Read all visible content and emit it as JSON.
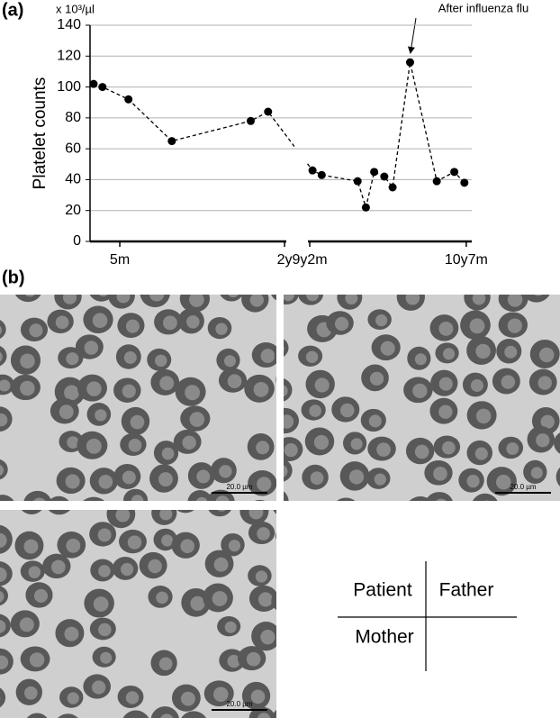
{
  "panel_labels": [
    "(a)",
    "(b)"
  ],
  "chart_data": {
    "type": "line",
    "y_label": "Platelet counts",
    "y_unit": "x 10³/µl",
    "x": [
      1.98,
      3.0,
      6.0,
      11.0,
      20.1,
      22.1,
      110.3,
      111.3,
      115.2,
      116.1,
      117.0,
      118.1,
      119.0,
      120.9,
      123.8,
      125.7,
      126.8
    ],
    "values": [
      102,
      100,
      92,
      65,
      78,
      84,
      46,
      43,
      39,
      22,
      45,
      42,
      35,
      116,
      39,
      45,
      38
    ],
    "color": "#000000",
    "xlim": [
      1.57,
      127.6
    ],
    "x_break": [
      24.2,
      109.8
    ],
    "xticks": [
      {
        "value": 5,
        "label": "5m"
      },
      {
        "value": 24,
        "label": "2y"
      },
      {
        "value": 110,
        "label": "9y2m"
      },
      {
        "value": 127,
        "label": "10y7m"
      }
    ],
    "ylim": [
      0,
      140
    ],
    "yticks": [
      0,
      20,
      40,
      60,
      80,
      100,
      120,
      140
    ],
    "grid": true,
    "annotation": "After influenza flu"
  },
  "micrographs": [
    {
      "scale_bar": "20.0 µm"
    },
    {
      "scale_bar": "20.0 µm"
    },
    {
      "scale_bar": "20.0 µm"
    }
  ],
  "legend_grid": {
    "top_left": "Patient",
    "top_right": "Father",
    "bottom_left": "Mother"
  }
}
